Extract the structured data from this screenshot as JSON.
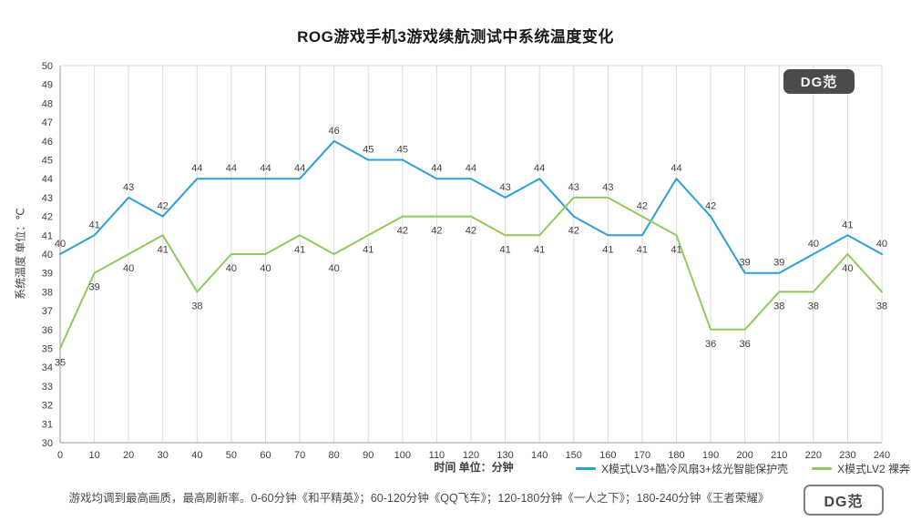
{
  "title": "ROG游戏手机3游戏续航测试中系统温度变化",
  "watermark": {
    "text": "DG范"
  },
  "footnote": "游戏均调到最高画质，最高刷新率。0-60分钟《和平精英》；60-120分钟《QQ飞车》；120-180分钟《一人之下》；180-240分钟《王者荣耀》",
  "chart_data": {
    "type": "line",
    "title": "ROG游戏手机3游戏续航测试中系统温度变化",
    "xlabel": "时间 单位：分钟",
    "ylabel": "系统温度 单位：℃",
    "x": [
      0,
      10,
      20,
      30,
      40,
      50,
      60,
      70,
      80,
      90,
      100,
      110,
      120,
      130,
      140,
      150,
      160,
      170,
      180,
      190,
      200,
      210,
      220,
      230,
      240
    ],
    "series": [
      {
        "name": "X模式LV3+酷冷风扇3+炫光智能保护壳",
        "color": "#2d9fd8",
        "values": [
          40,
          41,
          43,
          42,
          44,
          44,
          44,
          44,
          46,
          45,
          45,
          44,
          44,
          43,
          44,
          42,
          41,
          41,
          44,
          42,
          39,
          39,
          40,
          41,
          40
        ]
      },
      {
        "name": "X模式LV2 裸奔",
        "color": "#8fcb5b",
        "values": [
          35,
          39,
          40,
          41,
          38,
          40,
          40,
          41,
          40,
          41,
          42,
          42,
          42,
          41,
          41,
          43,
          43,
          42,
          41,
          36,
          36,
          38,
          38,
          40,
          38
        ]
      }
    ],
    "ylim": [
      30,
      50
    ],
    "ytick_step": 1,
    "xlim": [
      0,
      240
    ],
    "grid": "vertical",
    "legend_position": "bottom-right",
    "colors": {
      "grid": "#dcdcdc",
      "axis": "#9b9b9b",
      "tick_text": "#3d3d3d",
      "data_label": "#404040"
    }
  }
}
